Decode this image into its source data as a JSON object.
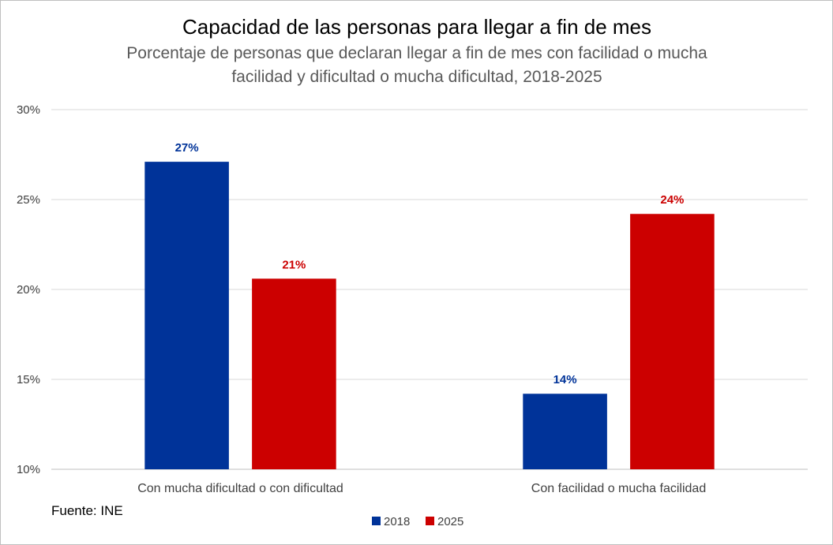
{
  "chart_data": {
    "type": "bar",
    "title": "Capacidad de las personas para llegar a fin de mes",
    "subtitle_lines": [
      "Porcentaje de personas que declaran llegar a fin de mes con facilidad o mucha",
      "facilidad y dificultad o mucha dificultad, 2018-2025"
    ],
    "categories": [
      "Con mucha dificultad o con dificultad",
      "Con facilidad o mucha facilidad"
    ],
    "series": [
      {
        "name": "2018",
        "color": "#003399",
        "values": [
          27.1,
          14.2
        ],
        "labels": [
          "27%",
          "14%"
        ]
      },
      {
        "name": "2025",
        "color": "#CC0000",
        "values": [
          20.6,
          24.2
        ],
        "labels": [
          "21%",
          "24%"
        ]
      }
    ],
    "ylim": [
      10,
      30
    ],
    "yticks": [
      10,
      15,
      20,
      25,
      30
    ],
    "ytick_labels": [
      "10%",
      "15%",
      "20%",
      "25%",
      "30%"
    ],
    "grid": true,
    "legend_position": "bottom",
    "source": "Fuente: INE"
  }
}
